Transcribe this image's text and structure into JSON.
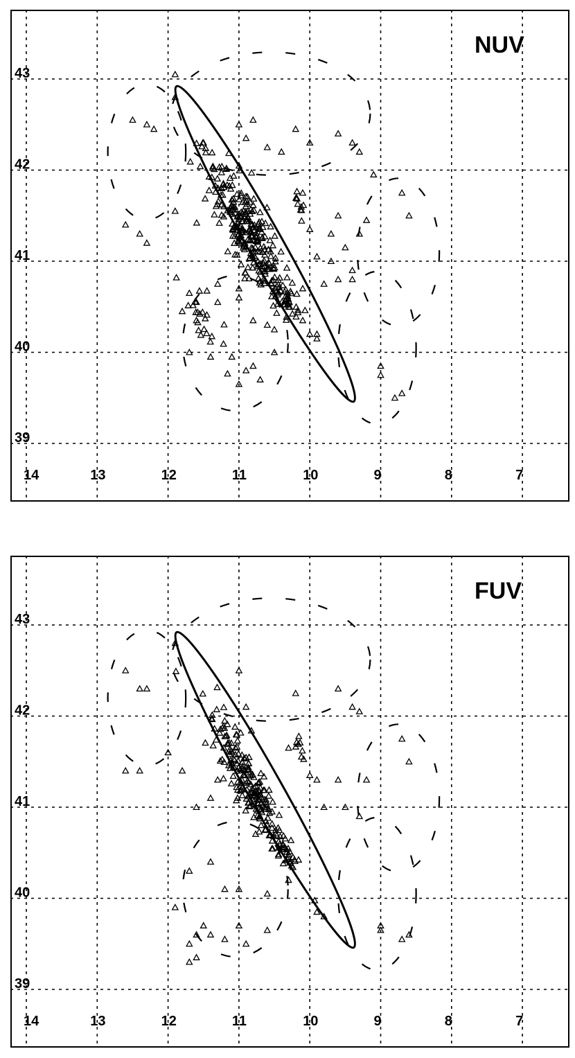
{
  "chart_data": [
    {
      "type": "scatter",
      "title": "NUV",
      "xlabel": "",
      "ylabel": "",
      "xlim": [
        14,
        7
      ],
      "ylim": [
        39,
        43.7
      ],
      "xticks": [
        "14",
        "13",
        "12",
        "11",
        "10",
        "9",
        "8",
        "7"
      ],
      "yticks": [
        "39",
        "40",
        "41",
        "42",
        "43"
      ],
      "grid": true,
      "marker": "triangle",
      "ellipse": {
        "center": [
          10.68,
          41.24
        ],
        "end_a": [
          11.88,
          42.92
        ],
        "end_b": [
          9.38,
          39.46
        ],
        "semi_minor_deg": 0.21
      },
      "clusters": [
        {
          "x": 10.9,
          "y": 41.35,
          "sx": 0.33,
          "sy": 0.45,
          "n": 260
        },
        {
          "x": 10.4,
          "y": 40.65,
          "sx": 0.18,
          "sy": 0.14,
          "n": 45
        },
        {
          "x": 11.55,
          "y": 40.4,
          "sx": 0.22,
          "sy": 0.25,
          "n": 22
        },
        {
          "x": 10.15,
          "y": 41.65,
          "sx": 0.05,
          "sy": 0.07,
          "n": 10
        }
      ],
      "series": [
        {
          "x": [
            12.3,
            12.2,
            12.5,
            11.9,
            11.5,
            11.0,
            10.9,
            10.6,
            10.4,
            10.0,
            9.6,
            9.4,
            9.3,
            9.1,
            8.7,
            8.6,
            12.6,
            12.4,
            12.3,
            11.9,
            10.0,
            9.9,
            9.6,
            9.2,
            9.7,
            9.7,
            9.3,
            9.6,
            11.3,
            10.8,
            10.1,
            11.8,
            11.6,
            11.7,
            11.4,
            11.1,
            11.0,
            10.9,
            10.7,
            10.8,
            10.3,
            10.1,
            10.0,
            9.9,
            11.7,
            11.6,
            11.3,
            11.0,
            11.0,
            10.6,
            10.5,
            10.5,
            9.9,
            9.0,
            9.0,
            9.4,
            8.8,
            8.7,
            11.9,
            10.8,
            10.2,
            9.5,
            9.4,
            9.8,
            10.1
          ],
          "y": [
            42.5,
            42.45,
            42.55,
            42.8,
            42.3,
            42.5,
            42.35,
            42.25,
            42.2,
            42.3,
            42.4,
            42.3,
            42.2,
            41.95,
            41.75,
            41.5,
            41.4,
            41.3,
            41.2,
            41.55,
            41.35,
            41.05,
            41.5,
            41.45,
            41.0,
            41.3,
            41.3,
            40.8,
            40.55,
            40.35,
            40.7,
            40.45,
            40.35,
            40.0,
            39.95,
            39.95,
            39.65,
            39.8,
            39.7,
            39.85,
            40.5,
            40.35,
            40.2,
            40.2,
            40.65,
            40.55,
            40.75,
            40.7,
            40.6,
            40.3,
            40.25,
            40.0,
            40.15,
            39.75,
            39.85,
            40.9,
            39.5,
            39.55,
            43.05,
            42.55,
            42.45,
            41.15,
            40.8,
            40.75,
            41.75
          ]
        }
      ]
    },
    {
      "type": "scatter",
      "title": "FUV",
      "xlabel": "",
      "ylabel": "",
      "xlim": [
        14,
        7
      ],
      "ylim": [
        39,
        43.7
      ],
      "xticks": [
        "14",
        "13",
        "12",
        "11",
        "10",
        "9",
        "8",
        "7"
      ],
      "yticks": [
        "39",
        "40",
        "41",
        "42",
        "43"
      ],
      "grid": true,
      "marker": "triangle",
      "ellipse": {
        "center": [
          10.68,
          41.24
        ],
        "end_a": [
          11.88,
          42.92
        ],
        "end_b": [
          9.38,
          39.46
        ],
        "semi_minor_deg": 0.21
      },
      "clusters": [
        {
          "x": 10.88,
          "y": 41.3,
          "sx": 0.25,
          "sy": 0.42,
          "n": 200
        },
        {
          "x": 10.35,
          "y": 40.55,
          "sx": 0.14,
          "sy": 0.12,
          "n": 30
        },
        {
          "x": 10.15,
          "y": 41.65,
          "sx": 0.04,
          "sy": 0.06,
          "n": 8
        }
      ],
      "series": [
        {
          "x": [
            12.6,
            12.3,
            12.4,
            11.9,
            11.0,
            10.9,
            10.2,
            9.6,
            9.4,
            9.3,
            8.7,
            8.6,
            12.6,
            12.4,
            12.0,
            11.8,
            11.6,
            11.4,
            11.3,
            10.0,
            9.9,
            9.6,
            9.2,
            9.8,
            9.5,
            9.3,
            11.4,
            11.2,
            11.7,
            11.0,
            10.6,
            10.3,
            9.9,
            11.9,
            11.5,
            11.6,
            11.7,
            11.4,
            11.2,
            11.0,
            10.9,
            10.6,
            9.8,
            9.0,
            9.0,
            8.7,
            8.6,
            11.6,
            11.7,
            10.3
          ],
          "y": [
            42.5,
            42.3,
            42.3,
            42.8,
            42.5,
            42.1,
            42.25,
            42.3,
            42.1,
            42.05,
            41.75,
            41.5,
            41.4,
            41.4,
            41.6,
            41.4,
            41.0,
            41.1,
            41.3,
            41.35,
            41.3,
            41.3,
            41.3,
            41.0,
            41.0,
            40.9,
            40.4,
            40.1,
            40.3,
            40.1,
            40.05,
            40.2,
            39.85,
            39.9,
            39.7,
            39.6,
            39.5,
            39.6,
            39.55,
            39.7,
            39.5,
            39.65,
            39.8,
            39.65,
            39.7,
            39.55,
            39.6,
            39.35,
            39.3,
            41.65
          ]
        }
      ]
    }
  ],
  "colors": {
    "ink": "#000000",
    "background": "#ffffff"
  },
  "labels": {
    "nuv": "NUV",
    "fuv": "FUV"
  }
}
